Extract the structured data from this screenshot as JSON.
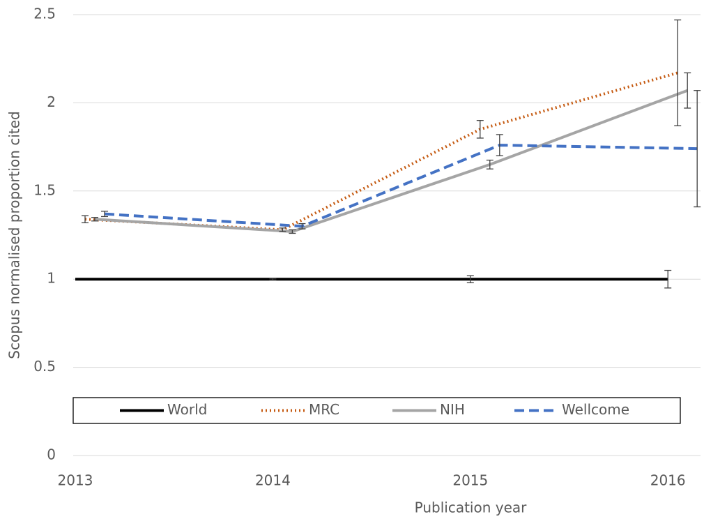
{
  "chart_data": {
    "type": "line",
    "x_label": "Publication year",
    "y_label": "Scopus normalised proportion cited",
    "categories": [
      "2013",
      "2014",
      "2015",
      "2016"
    ],
    "ylim": [
      0,
      2.5
    ],
    "yticks": [
      0,
      0.5,
      1,
      1.5,
      2,
      2.5
    ],
    "grid": true,
    "legend": "bottom",
    "series": [
      {
        "name": "World",
        "color": "#000000",
        "dash": "solid",
        "values": [
          1,
          1,
          1,
          1
        ],
        "errors": [
          0,
          0.005,
          0.02,
          0.05
        ]
      },
      {
        "name": "MRC",
        "color": "#c55a11",
        "dash": "dotted",
        "values": [
          1.34,
          1.28,
          1.85,
          2.17
        ],
        "errors": [
          0.02,
          0.01,
          0.05,
          0.3
        ]
      },
      {
        "name": "NIH",
        "color": "#a5a5a5",
        "dash": "solid",
        "values": [
          1.34,
          1.27,
          1.65,
          2.07
        ],
        "errors": [
          0.01,
          0.01,
          0.025,
          0.1
        ]
      },
      {
        "name": "Wellcome",
        "color": "#4472c4",
        "dash": "dashed",
        "values": [
          1.37,
          1.3,
          1.76,
          1.74
        ],
        "errors": [
          0.015,
          0.015,
          0.06,
          0.33
        ]
      }
    ]
  }
}
